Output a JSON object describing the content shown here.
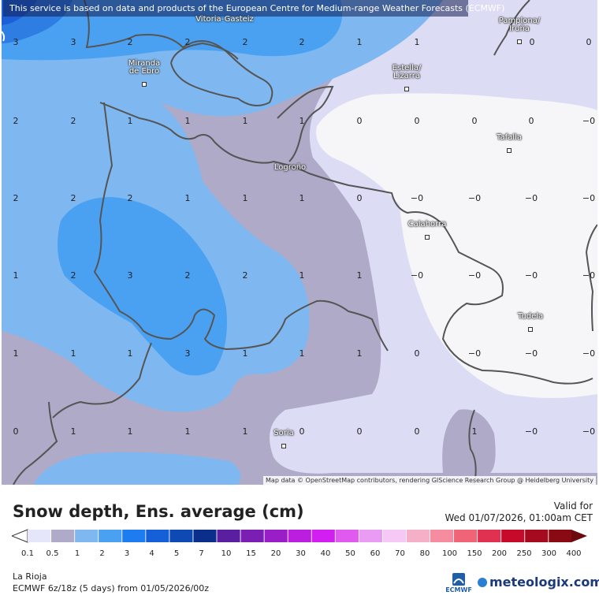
{
  "header": {
    "disclaimer": "This service is based on data and products of the European Centre for Medium-range Weather Forecasts (ECMWF)"
  },
  "map": {
    "attribution": "Map data © OpenStreetMap contributors, rendering GIScience Research Group @ Heidelberg University",
    "colors": {
      "very_light_lavender": "#dcdcf5",
      "light_lavender": "#e4e4f8",
      "grey_purple": "#aeaac7",
      "light_blue": "#7fb8f0",
      "mid_blue": "#4aa1f2",
      "dark_blue": "#2e7de3",
      "deep_blue": "#1c5fd8",
      "white_zone": "#f6f6f8",
      "border": "#555555"
    },
    "cities": [
      {
        "name": "Vitoria-Gasteiz"
      },
      {
        "name": "Pamplona/\nIruña"
      },
      {
        "name": "Miranda\nde Ebro"
      },
      {
        "name": "Estella/\nLizarra"
      },
      {
        "name": "Tafalla"
      },
      {
        "name": "Logroño"
      },
      {
        "name": "Calahorra"
      },
      {
        "name": "Tudela"
      },
      {
        "name": "Soria"
      }
    ],
    "values": [
      [
        "3",
        "3",
        "2",
        "2",
        "2",
        "2",
        "1",
        "1",
        "0",
        "0"
      ],
      [
        "2",
        "2",
        "1",
        "1",
        "1",
        "1",
        "0",
        "0",
        "0",
        "0",
        "−0"
      ],
      [
        "2",
        "2",
        "2",
        "1",
        "1",
        "1",
        "0",
        "−0",
        "−0",
        "−0",
        "−0"
      ],
      [
        "1",
        "2",
        "3",
        "2",
        "2",
        "1",
        "1",
        "−0",
        "−0",
        "−0",
        "−0"
      ],
      [
        "1",
        "1",
        "1",
        "3",
        "1",
        "1",
        "1",
        "0",
        "−0",
        "−0",
        "−0"
      ],
      [
        "0",
        "1",
        "1",
        "1",
        "1",
        "0",
        "0",
        "0",
        "1",
        "−0",
        "−0"
      ]
    ]
  },
  "legend": {
    "title": "Snow depth, Ens. average (cm)",
    "valid_label": "Valid for",
    "valid_date": "Wed 01/07/2026, 01:00am CET",
    "ticks": [
      "0.1",
      "0.5",
      "1",
      "2",
      "3",
      "4",
      "5",
      "7",
      "10",
      "15",
      "20",
      "30",
      "40",
      "50",
      "60",
      "70",
      "80",
      "100",
      "150",
      "200",
      "250",
      "300",
      "400"
    ],
    "colors": [
      "#e6e6fa",
      "#aeaac7",
      "#7fb8f0",
      "#4aa1f2",
      "#1c7cf0",
      "#1560d8",
      "#0f4ab4",
      "#0a2e8a",
      "#5a1ea0",
      "#7a1eb4",
      "#9a1ec8",
      "#bc1ee0",
      "#d21ef0",
      "#e05af0",
      "#ea9cf5",
      "#f5c8f5",
      "#f5b0c8",
      "#f58ca0",
      "#f06478",
      "#e03250",
      "#c80a2a",
      "#a50a1e",
      "#8a0a14",
      "#6a0a10"
    ],
    "region": "La Rioja",
    "model": "ECMWF 6z/18z (5 days) from 01/05/2026/00z",
    "ecmwf_label": "ECMWF",
    "brand": "meteologix.com"
  }
}
